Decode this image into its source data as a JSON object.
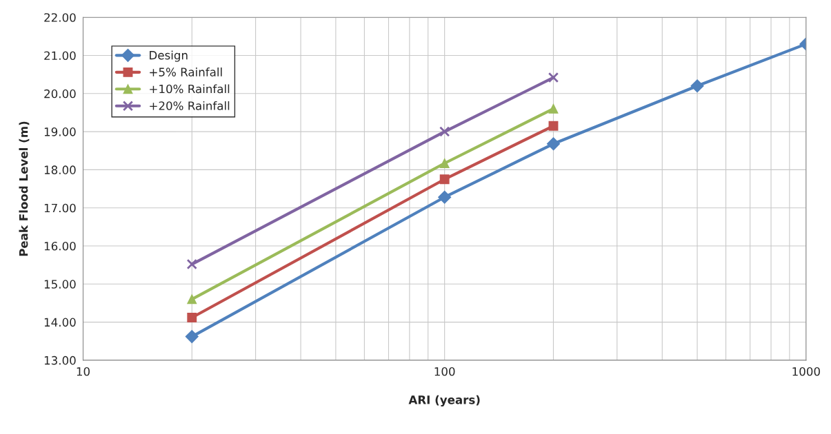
{
  "chart_data": {
    "type": "line",
    "xlabel": "ARI (years)",
    "ylabel": "Peak Flood Level (m)",
    "log": "x",
    "grid": true,
    "legend": "top left",
    "xlim": [
      10,
      1000
    ],
    "xticks": [
      10,
      100,
      1000
    ],
    "ylim": [
      13,
      22
    ],
    "yticks": [
      {
        "value": 13,
        "label": "13.00"
      },
      {
        "value": 14,
        "label": "14.00"
      },
      {
        "value": 15,
        "label": "15.00"
      },
      {
        "value": 16,
        "label": "16.00"
      },
      {
        "value": 17,
        "label": "17.00"
      },
      {
        "value": 18,
        "label": "18.00"
      },
      {
        "value": 19,
        "label": "19.00"
      },
      {
        "value": 20,
        "label": "20.00"
      },
      {
        "value": 21,
        "label": "21.00"
      },
      {
        "value": 22,
        "label": "22.00"
      }
    ],
    "series": [
      {
        "name": "Design",
        "color": "#4f81bd",
        "marker": "diamond",
        "x": [
          20,
          100,
          200,
          500,
          1000
        ],
        "values": [
          13.62,
          17.28,
          18.68,
          20.2,
          21.3
        ]
      },
      {
        "name": "+5% Rainfall",
        "color": "#c0504d",
        "marker": "square",
        "x": [
          20,
          100,
          200
        ],
        "values": [
          14.12,
          17.75,
          19.15
        ]
      },
      {
        "name": "+10% Rainfall",
        "color": "#9bbb59",
        "marker": "triangle",
        "x": [
          20,
          100,
          200
        ],
        "values": [
          14.6,
          18.17,
          19.6
        ]
      },
      {
        "name": "+20% Rainfall",
        "color": "#8064a2",
        "marker": "cross",
        "x": [
          20,
          100,
          200
        ],
        "values": [
          15.52,
          19.0,
          20.42
        ]
      }
    ]
  }
}
